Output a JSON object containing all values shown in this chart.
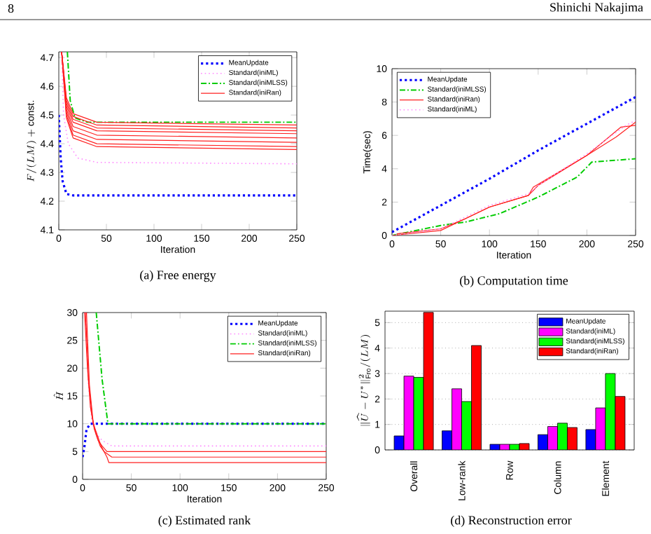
{
  "chart_data": [
    {
      "type": "line",
      "title": "(a) Free energy",
      "annotations": [
        "8"
      ],
      "xlabel": "Iteration",
      "ylabel": "F/(LM) + \\mathrm{const.}",
      "xlim": [
        0,
        250
      ],
      "xticks": [
        0,
        50,
        100,
        150,
        200,
        250
      ],
      "ylim": [
        4.1,
        4.72
      ],
      "yticks": [
        4.1,
        4.2,
        4.3,
        4.4,
        4.5,
        4.6,
        4.7
      ],
      "legend": "top right",
      "series": [
        {
          "name": "MeanUpdate",
          "color": "#0000ff",
          "line_style": "dotted",
          "x": [
            0,
            2,
            4,
            8,
            15,
            250
          ],
          "values": [
            4.5,
            4.35,
            4.27,
            4.225,
            4.22,
            4.22
          ]
        },
        {
          "name": "Standard(iniML)",
          "color": "#ff88ff",
          "line_style": "dotted",
          "x": [
            3,
            5,
            10,
            20,
            40,
            250
          ],
          "values": [
            4.72,
            4.5,
            4.4,
            4.35,
            4.335,
            4.33
          ]
        },
        {
          "name": "Standard(iniMLSS)",
          "color": "#00cc00",
          "line_style": "dashed",
          "x": [
            9,
            12,
            17,
            30,
            250
          ],
          "values": [
            4.72,
            4.55,
            4.49,
            4.475,
            4.475
          ]
        },
        {
          "name": "Standard(iniRan)",
          "color": "#ff2020",
          "line_style": "solid",
          "x": [
            3,
            8,
            15,
            40,
            250
          ],
          "values": [
            4.72,
            4.56,
            4.505,
            4.475,
            4.465
          ]
        },
        {
          "color": "#ff2020",
          "line_style": "solid",
          "x": [
            3,
            8,
            15,
            40,
            250
          ],
          "values": [
            4.72,
            4.55,
            4.495,
            4.465,
            4.455
          ]
        },
        {
          "color": "#ff2020",
          "line_style": "solid",
          "x": [
            3,
            8,
            15,
            40,
            250
          ],
          "values": [
            4.72,
            4.54,
            4.485,
            4.455,
            4.445
          ]
        },
        {
          "color": "#ff2020",
          "line_style": "solid",
          "x": [
            3,
            8,
            15,
            40,
            250
          ],
          "values": [
            4.72,
            4.53,
            4.475,
            4.445,
            4.435
          ]
        },
        {
          "color": "#ff2020",
          "line_style": "solid",
          "x": [
            3,
            8,
            15,
            40,
            250
          ],
          "values": [
            4.72,
            4.52,
            4.46,
            4.43,
            4.42
          ]
        },
        {
          "color": "#ff2020",
          "line_style": "solid",
          "x": [
            3,
            8,
            15,
            40,
            250
          ],
          "values": [
            4.72,
            4.51,
            4.445,
            4.415,
            4.405
          ]
        },
        {
          "color": "#ff2020",
          "line_style": "solid",
          "x": [
            3,
            8,
            15,
            40,
            250
          ],
          "values": [
            4.72,
            4.5,
            4.43,
            4.4,
            4.39
          ]
        },
        {
          "color": "#ff2020",
          "line_style": "solid",
          "x": [
            3,
            8,
            15,
            40,
            250
          ],
          "values": [
            4.72,
            4.49,
            4.42,
            4.39,
            4.38
          ]
        }
      ]
    },
    {
      "type": "line",
      "title": "(b) Computation time",
      "annotations": [
        "Shinichi Nakajima"
      ],
      "xlabel": "Iteration",
      "ylabel": "Time(sec)",
      "xlim": [
        0,
        250
      ],
      "xticks": [
        0,
        50,
        100,
        150,
        200,
        250
      ],
      "ylim": [
        0,
        10
      ],
      "yticks": [
        0,
        2,
        4,
        6,
        8,
        10
      ],
      "legend": "top left",
      "series": [
        {
          "name": "MeanUpdate",
          "color": "#0000ff",
          "line_style": "dotted",
          "x": [
            0,
            50,
            100,
            150,
            200,
            250
          ],
          "values": [
            0.2,
            1.8,
            3.4,
            5.1,
            6.7,
            8.3
          ]
        },
        {
          "name": "Standard(iniMLSS)",
          "color": "#00cc00",
          "line_style": "dashed",
          "x": [
            0,
            50,
            75,
            110,
            150,
            190,
            205,
            250
          ],
          "values": [
            0,
            0.6,
            0.8,
            1.3,
            2.3,
            3.5,
            4.4,
            4.6
          ]
        },
        {
          "name": "Standard(iniRan)",
          "color": "#ff2020",
          "line_style": "solid",
          "x": [
            0,
            50,
            75,
            100,
            140,
            150,
            200,
            230,
            250
          ],
          "values": [
            0,
            0.3,
            1.0,
            1.7,
            2.4,
            3.0,
            4.8,
            5.9,
            6.8
          ]
        },
        {
          "color": "#ff2020",
          "line_style": "solid",
          "x": [
            5,
            50,
            75,
            100,
            140,
            145,
            200,
            235,
            250
          ],
          "values": [
            0.1,
            0.4,
            1.0,
            1.7,
            2.4,
            2.9,
            4.8,
            6.5,
            6.6
          ]
        },
        {
          "name": "Standard(iniML)",
          "color": "#ff88ff",
          "line_style": "dotted",
          "x": [
            0,
            50,
            100,
            140,
            150,
            200,
            240,
            250
          ],
          "values": [
            0,
            0.4,
            1.8,
            2.5,
            3.0,
            4.9,
            6.6,
            6.9
          ]
        }
      ]
    },
    {
      "type": "line",
      "title": "(c) Estimated rank",
      "xlabel": "Iteration",
      "ylabel": "\\hat{H}",
      "xlim": [
        0,
        250
      ],
      "xticks": [
        0,
        50,
        100,
        150,
        200,
        250
      ],
      "ylim": [
        0,
        30
      ],
      "yticks": [
        0,
        5,
        10,
        15,
        20,
        25,
        30
      ],
      "legend": "top right",
      "series": [
        {
          "name": "MeanUpdate",
          "color": "#0000ff",
          "line_style": "dotted",
          "x": [
            0,
            2,
            4,
            6,
            8,
            250
          ],
          "values": [
            4,
            6,
            9,
            9.5,
            10,
            10
          ]
        },
        {
          "name": "Standard(iniML)",
          "color": "#ff88ff",
          "line_style": "dotted",
          "x": [
            3,
            6,
            10,
            15,
            20,
            30,
            250
          ],
          "values": [
            30,
            17,
            10,
            8,
            7,
            6,
            6
          ]
        },
        {
          "name": "Standard(iniMLSS)",
          "color": "#00cc00",
          "line_style": "dashed",
          "x": [
            14,
            20,
            26,
            250
          ],
          "values": [
            30,
            18,
            10,
            10
          ]
        },
        {
          "name": "Standard(iniRan)",
          "color": "#ff2020",
          "line_style": "solid",
          "x": [
            2,
            5,
            8,
            12,
            16,
            20,
            25,
            250
          ],
          "values": [
            30,
            20,
            13,
            9,
            7,
            6,
            5,
            5
          ]
        },
        {
          "color": "#ff2020",
          "line_style": "solid",
          "x": [
            3,
            6,
            10,
            14,
            18,
            22,
            30,
            250
          ],
          "values": [
            30,
            18,
            11,
            8,
            6,
            5,
            4,
            4
          ]
        },
        {
          "color": "#ff2020",
          "line_style": "solid",
          "x": [
            4,
            7,
            11,
            15,
            19,
            25,
            27,
            250
          ],
          "values": [
            30,
            17,
            10,
            8,
            6,
            4,
            3,
            3
          ]
        }
      ]
    },
    {
      "type": "bar",
      "title": "(d) Reconstruction error",
      "ylabel": "\\|\\widehat{U} - U^*\\|^2_{\\mathrm{Fro}}/(LM)",
      "categories": [
        "Overall",
        "Low-rank",
        "Row",
        "Column",
        "Element"
      ],
      "ylim": [
        0,
        5.45
      ],
      "yticks": [
        0,
        1,
        2,
        3,
        4,
        5
      ],
      "grid": "y",
      "legend": "top right",
      "series": [
        {
          "name": "MeanUpdate",
          "color": "#0000ff",
          "values": [
            0.55,
            0.75,
            0.22,
            0.6,
            0.8
          ]
        },
        {
          "name": "Standard(iniML)",
          "color": "#ff00ff",
          "values": [
            2.9,
            2.4,
            0.22,
            0.92,
            1.65
          ]
        },
        {
          "name": "Standard(iniMLSS)",
          "color": "#00ff00",
          "values": [
            2.85,
            1.9,
            0.22,
            1.05,
            3.0
          ]
        },
        {
          "name": "Standard(iniRan)",
          "color": "#ff0000",
          "values": [
            5.4,
            4.1,
            0.25,
            0.88,
            2.1
          ]
        }
      ]
    }
  ]
}
